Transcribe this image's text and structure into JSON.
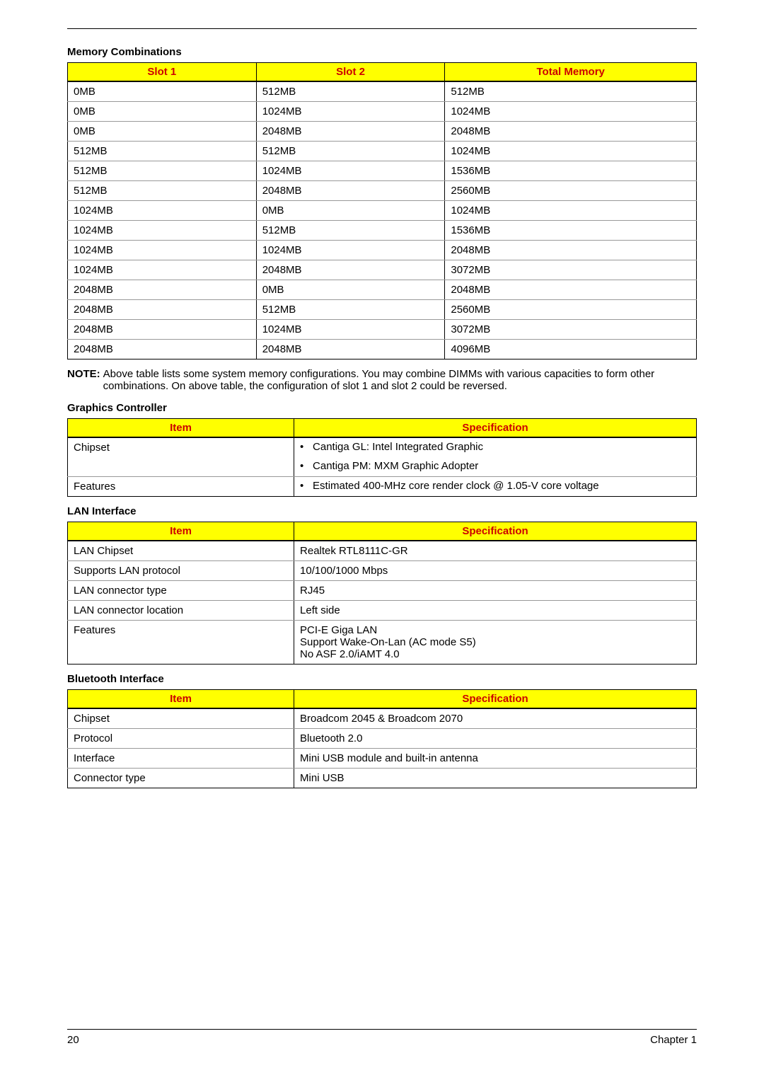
{
  "memory_table": {
    "title": "Memory Combinations",
    "headers": [
      "Slot 1",
      "Slot 2",
      "Total Memory"
    ],
    "rows": [
      [
        "0MB",
        "512MB",
        "512MB"
      ],
      [
        "0MB",
        "1024MB",
        "1024MB"
      ],
      [
        "0MB",
        "2048MB",
        "2048MB"
      ],
      [
        "512MB",
        "512MB",
        "1024MB"
      ],
      [
        "512MB",
        "1024MB",
        "1536MB"
      ],
      [
        "512MB",
        "2048MB",
        "2560MB"
      ],
      [
        "1024MB",
        "0MB",
        "1024MB"
      ],
      [
        "1024MB",
        "512MB",
        "1536MB"
      ],
      [
        "1024MB",
        "1024MB",
        "2048MB"
      ],
      [
        "1024MB",
        "2048MB",
        "3072MB"
      ],
      [
        "2048MB",
        "0MB",
        "2048MB"
      ],
      [
        "2048MB",
        "512MB",
        "2560MB"
      ],
      [
        "2048MB",
        "1024MB",
        "3072MB"
      ],
      [
        "2048MB",
        "2048MB",
        "4096MB"
      ]
    ]
  },
  "note": {
    "label": "NOTE:",
    "body": "Above table lists some system memory configurations. You may combine DIMMs with various capacities to form other combinations. On above table, the configuration of slot 1 and slot 2 could be reversed."
  },
  "graphics_table": {
    "title": "Graphics Controller",
    "headers": [
      "Item",
      "Specification"
    ],
    "rows": [
      {
        "item": "Chipset",
        "spec_bullets": [
          "Cantiga GL: Intel Integrated Graphic",
          "Cantiga PM: MXM Graphic Adopter"
        ]
      },
      {
        "item": "Features",
        "spec_bullets": [
          "Estimated 400-MHz core render clock @ 1.05-V core voltage"
        ]
      }
    ]
  },
  "lan_table": {
    "title": "LAN Interface",
    "headers": [
      "Item",
      "Specification"
    ],
    "rows": [
      {
        "item": "LAN Chipset",
        "spec": "Realtek RTL8111C-GR"
      },
      {
        "item": "Supports LAN protocol",
        "spec": "10/100/1000 Mbps"
      },
      {
        "item": "LAN connector type",
        "spec": "RJ45"
      },
      {
        "item": "LAN connector location",
        "spec": "Left side"
      },
      {
        "item": "Features",
        "spec_lines": [
          "PCI-E Giga LAN",
          "Support Wake-On-Lan (AC mode S5)",
          "No ASF 2.0/iAMT 4.0"
        ]
      }
    ]
  },
  "bt_table": {
    "title": "Bluetooth Interface",
    "headers": [
      "Item",
      "Specification"
    ],
    "rows": [
      {
        "item": "Chipset",
        "spec": "Broadcom 2045 & Broadcom 2070"
      },
      {
        "item": "Protocol",
        "spec": "Bluetooth 2.0"
      },
      {
        "item": "Interface",
        "spec": "Mini USB module and built-in antenna"
      },
      {
        "item": "Connector type",
        "spec": "Mini USB"
      }
    ]
  },
  "footer": {
    "page": "20",
    "chapter": "Chapter 1"
  }
}
